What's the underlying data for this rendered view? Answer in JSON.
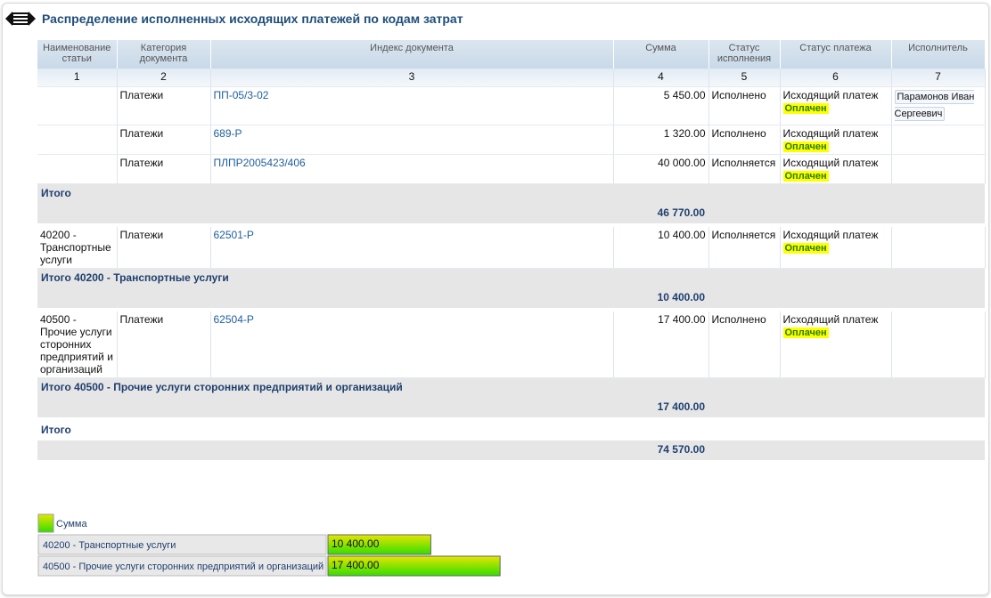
{
  "header": {
    "title": "Распределение исполненных исходящих платежей по кодам затрат"
  },
  "table": {
    "headers": [
      "Наименование статьи",
      "Категория документа",
      "Индекс документа",
      "Сумма",
      "Статус исполнения",
      "Статус платежа",
      "Исполнитель"
    ],
    "numbers": [
      "1",
      "2",
      "3",
      "4",
      "5",
      "6",
      "7"
    ],
    "sections": [
      {
        "rows": [
          {
            "category": "Платежи",
            "index": "ПП-05/3-02",
            "sum": "5 450.00",
            "exec_status": "Исполнено",
            "pay_status": "Исходящий платеж",
            "badge": "Оплачен",
            "executor": "Парамонов Иван Сергеевич"
          },
          {
            "category": "Платежи",
            "index": "689-Р",
            "sum": "1 320.00",
            "exec_status": "Исполнено",
            "pay_status": "Исходящий платеж",
            "badge": "Оплачен"
          },
          {
            "category": "Платежи",
            "index": "ПЛПР2005423/406",
            "sum": "40 000.00",
            "exec_status": "Исполняется",
            "pay_status": "Исходящий платеж",
            "badge": "Оплачен"
          }
        ],
        "total_label": "Итого",
        "total": "46 770.00"
      },
      {
        "article": "40200 - Транспортные услуги",
        "rows": [
          {
            "category": "Платежи",
            "index": "62501-Р",
            "sum": "10 400.00",
            "exec_status": "Исполняется",
            "pay_status": "Исходящий платеж",
            "badge": "Оплачен"
          }
        ],
        "total_label": "Итого 40200 - Транспортные услуги",
        "total": "10 400.00"
      },
      {
        "article": "40500 - Прочие услуги сторонних предприятий и организаций",
        "rows": [
          {
            "category": "Платежи",
            "index": "62504-Р",
            "sum": "17 400.00",
            "exec_status": "Исполнено",
            "pay_status": "Исходящий платеж",
            "badge": "Оплачен"
          }
        ],
        "total_label": "Итого 40500 - Прочие услуги сторонних предприятий и организаций",
        "total": "17 400.00"
      }
    ],
    "grand": {
      "label": "Итого",
      "total": "74 570.00"
    }
  },
  "chart_data": {
    "type": "bar",
    "legend": "Сумма",
    "categories": [
      "40200 - Транспортные услуги",
      "40500 - Прочие услуги сторонних предприятий и организаций"
    ],
    "values": [
      10400,
      17400
    ],
    "value_labels": [
      "10 400.00",
      "17 400.00"
    ]
  }
}
